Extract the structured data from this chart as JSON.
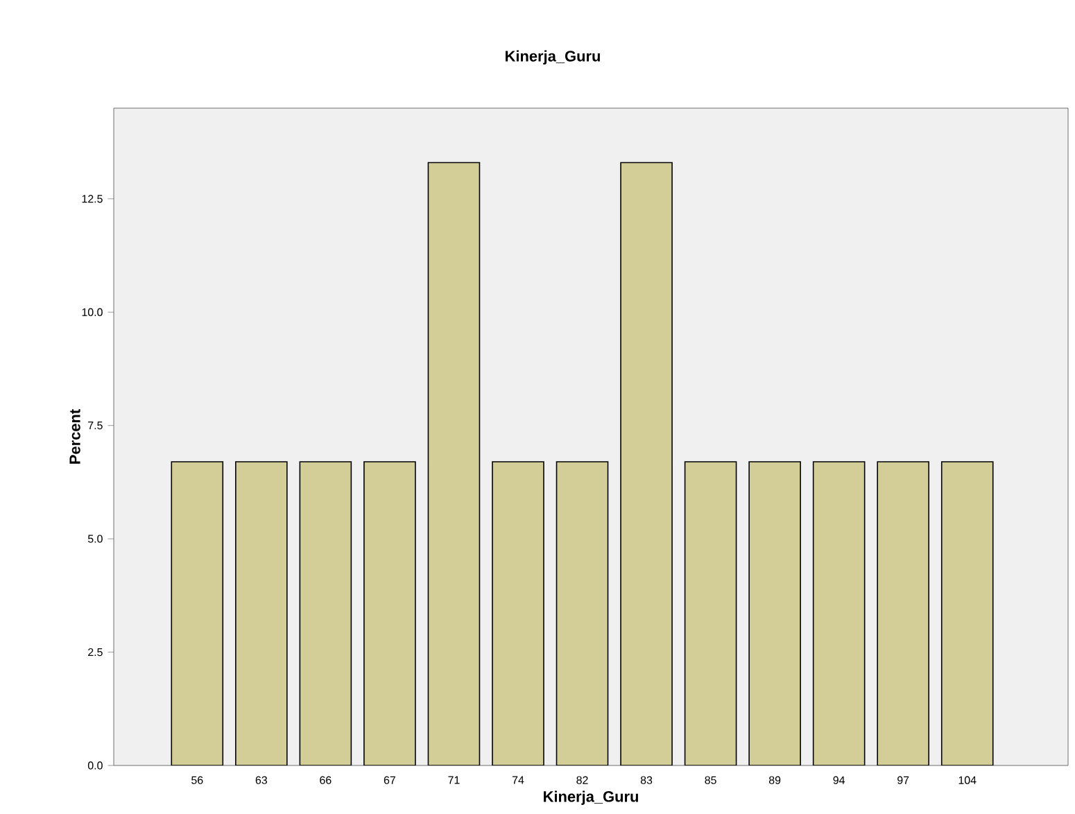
{
  "chart_data": {
    "type": "bar",
    "title": "Kinerja_Guru",
    "xlabel": "Kinerja_Guru",
    "ylabel": "Percent",
    "categories": [
      "56",
      "63",
      "66",
      "67",
      "71",
      "74",
      "82",
      "83",
      "85",
      "89",
      "94",
      "97",
      "104"
    ],
    "values": [
      6.7,
      6.7,
      6.7,
      6.7,
      13.3,
      6.7,
      6.7,
      13.3,
      6.7,
      6.7,
      6.7,
      6.7,
      6.7
    ],
    "color": "#d3ce97",
    "ylim": [
      0,
      14.5
    ],
    "yticks": [
      {
        "value": 0,
        "label": "0.0"
      },
      2.5,
      {
        "value": 5,
        "label": "5.0"
      },
      7.5,
      {
        "value": 10,
        "label": "10.0"
      },
      12.5
    ],
    "grid": false
  }
}
